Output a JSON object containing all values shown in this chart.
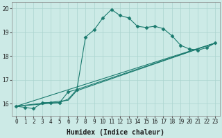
{
  "xlabel": "Humidex (Indice chaleur)",
  "xlim": [
    -0.5,
    23.5
  ],
  "ylim": [
    15.5,
    20.25
  ],
  "yticks": [
    16,
    17,
    18,
    19,
    20
  ],
  "xticks": [
    0,
    1,
    2,
    3,
    4,
    5,
    6,
    7,
    8,
    9,
    10,
    11,
    12,
    13,
    14,
    15,
    16,
    17,
    18,
    19,
    20,
    21,
    22,
    23
  ],
  "background_color": "#cceae6",
  "grid_color": "#aad4cf",
  "line_color": "#1a7a6e",
  "lines": [
    {
      "x": [
        0,
        1,
        2,
        3,
        4,
        5,
        6,
        7,
        8,
        9,
        10,
        11,
        12,
        13,
        14,
        15,
        16,
        17,
        18,
        19,
        20,
        21,
        22,
        23
      ],
      "y": [
        15.9,
        15.85,
        15.8,
        16.05,
        16.05,
        16.05,
        16.5,
        16.6,
        18.8,
        19.1,
        19.6,
        19.95,
        19.7,
        19.6,
        19.25,
        19.2,
        19.25,
        19.15,
        18.85,
        18.45,
        18.3,
        18.25,
        18.35,
        18.55
      ],
      "marker": "D",
      "markersize": 2.5
    },
    {
      "x": [
        0,
        23
      ],
      "y": [
        15.9,
        18.55
      ],
      "marker": null,
      "markersize": 0
    },
    {
      "x": [
        0,
        6,
        7,
        23
      ],
      "y": [
        15.9,
        16.15,
        16.55,
        18.55
      ],
      "marker": null,
      "markersize": 0
    },
    {
      "x": [
        0,
        5,
        6,
        7,
        23
      ],
      "y": [
        15.9,
        16.05,
        16.2,
        16.6,
        18.55
      ],
      "marker": null,
      "markersize": 0
    }
  ],
  "font_color": "#1a1a1a",
  "tick_fontsize": 5.5,
  "label_fontsize": 7.0
}
